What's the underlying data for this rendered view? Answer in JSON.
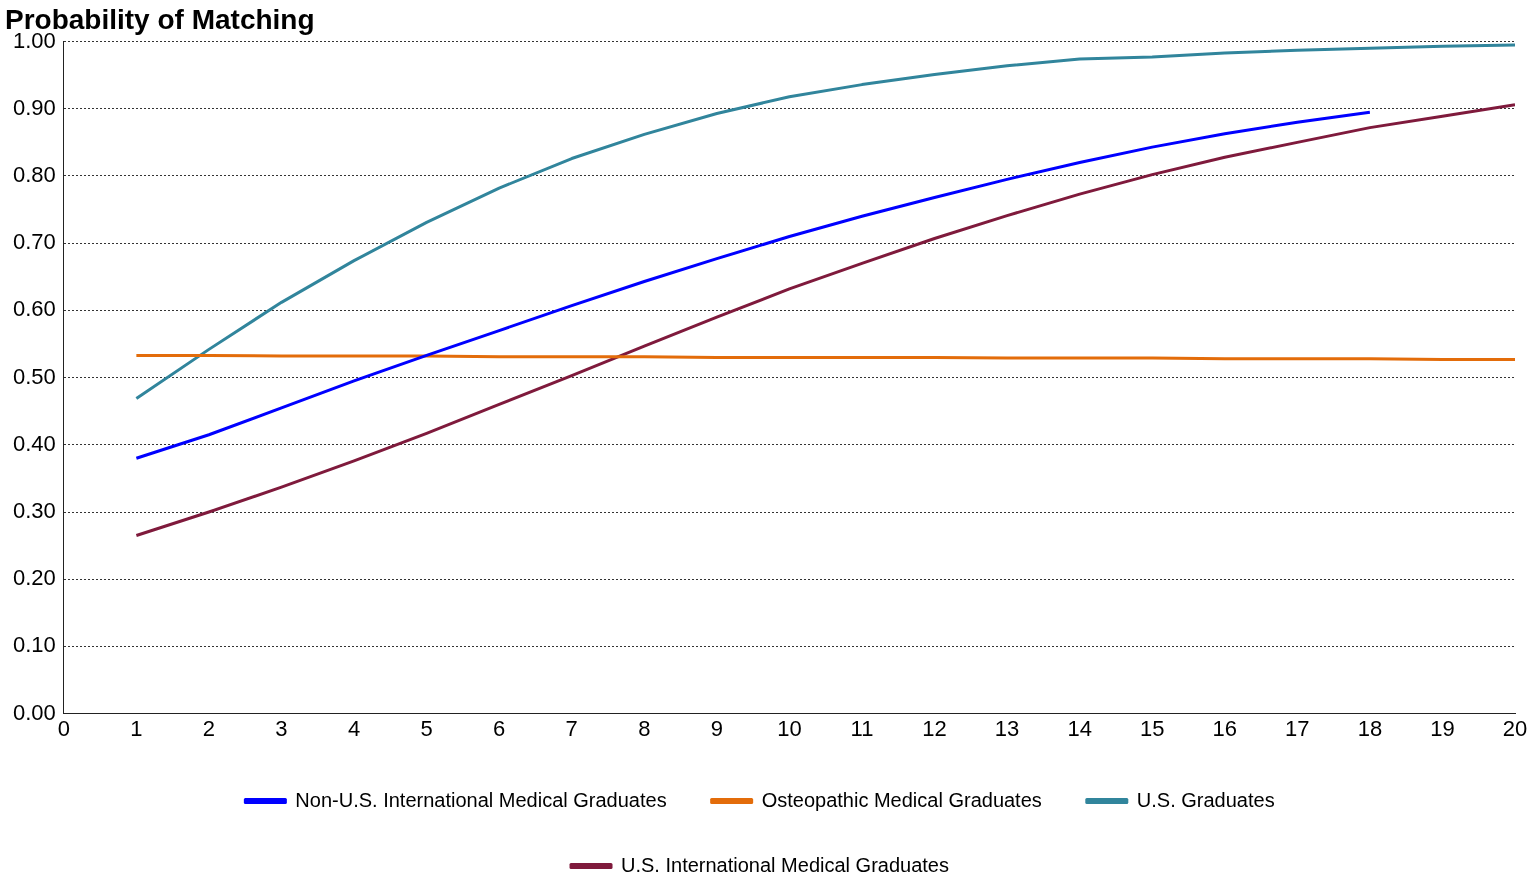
{
  "chart_data": {
    "type": "line",
    "title": "Probability of Matching",
    "x": [
      1,
      2,
      3,
      4,
      5,
      6,
      7,
      8,
      9,
      10,
      11,
      12,
      13,
      14,
      15,
      16,
      17,
      18,
      19,
      20
    ],
    "xlim": [
      0,
      20
    ],
    "xticks": [
      0,
      1,
      2,
      3,
      4,
      5,
      6,
      7,
      8,
      9,
      10,
      11,
      12,
      13,
      14,
      15,
      16,
      17,
      18,
      19,
      20
    ],
    "ylim": [
      0,
      1
    ],
    "yticks": [
      {
        "value": 0,
        "label": "0.00"
      },
      {
        "value": 0.1,
        "label": "0.10"
      },
      {
        "value": 0.2,
        "label": "0.20"
      },
      {
        "value": 0.3,
        "label": "0.30"
      },
      {
        "value": 0.4,
        "label": "0.40"
      },
      {
        "value": 0.5,
        "label": "0.50"
      },
      {
        "value": 0.6,
        "label": "0.60"
      },
      {
        "value": 0.7,
        "label": "0.70"
      },
      {
        "value": 0.8,
        "label": "0.80"
      },
      {
        "value": 0.9,
        "label": "0.90"
      },
      {
        "value": 1,
        "label": "1.00"
      }
    ],
    "grid": "y",
    "legend": "bottom",
    "marker": "none",
    "line_style": "solid",
    "series": [
      {
        "name": "Non-U.S. International Medical Graduates",
        "color": "#0000ff",
        "values": [
          0.38,
          0.415,
          0.455,
          0.495,
          0.533,
          0.57,
          0.607,
          0.643,
          0.677,
          0.71,
          0.74,
          0.768,
          0.795,
          0.82,
          0.843,
          0.863,
          0.88,
          0.895,
          null,
          null
        ]
      },
      {
        "name": "Osteopathic Medical Graduates",
        "color": "#e36c0a",
        "values": [
          0.533,
          0.533,
          0.532,
          0.532,
          0.532,
          0.531,
          0.531,
          0.531,
          0.53,
          0.53,
          0.53,
          0.53,
          0.529,
          0.529,
          0.529,
          0.528,
          0.528,
          0.528,
          0.527,
          0.527
        ]
      },
      {
        "name": "U.S. Graduates",
        "color": "#31859c",
        "values": [
          0.469,
          0.542,
          0.612,
          0.674,
          0.731,
          0.782,
          0.826,
          0.862,
          0.893,
          0.918,
          0.936,
          0.951,
          0.964,
          0.974,
          0.977,
          0.983,
          0.987,
          0.99,
          0.993,
          0.995
        ]
      },
      {
        "name": "U.S. International Medical Graduates",
        "color": "#7f1a3c",
        "values": [
          0.265,
          0.3,
          0.337,
          0.376,
          0.417,
          0.46,
          0.503,
          0.547,
          0.59,
          0.632,
          0.67,
          0.707,
          0.741,
          0.773,
          0.802,
          0.828,
          0.85,
          0.872,
          0.889,
          0.906
        ]
      }
    ]
  }
}
